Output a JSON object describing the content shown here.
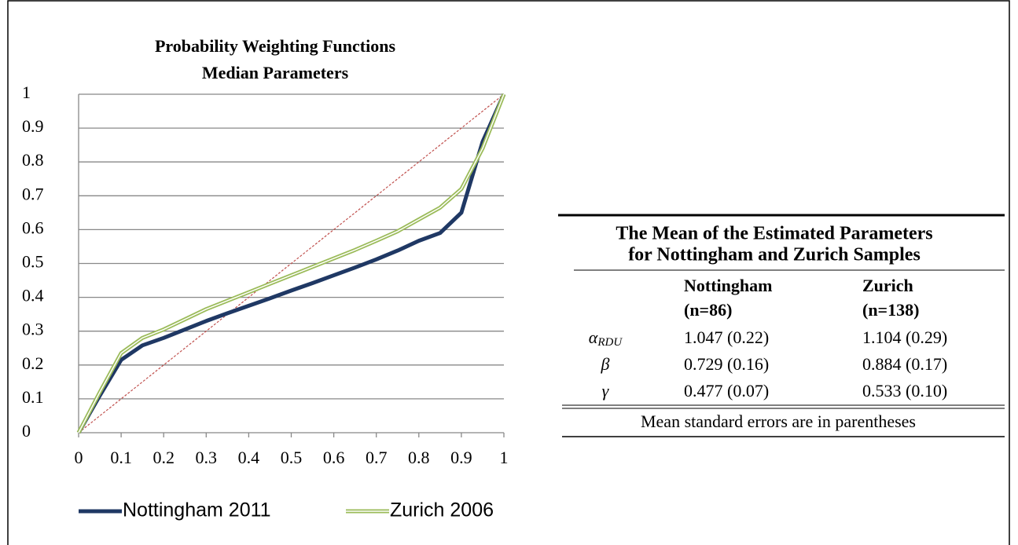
{
  "chart_data": {
    "type": "line",
    "title": [
      "Probability Weighting Functions",
      "Median Parameters"
    ],
    "x": [
      0,
      0.05,
      0.1,
      0.15,
      0.2,
      0.25,
      0.3,
      0.35,
      0.4,
      0.45,
      0.5,
      0.55,
      0.6,
      0.65,
      0.7,
      0.75,
      0.8,
      0.85,
      0.9,
      0.95,
      1
    ],
    "series": [
      {
        "color": "#c0504d",
        "style": "dashed",
        "values": [
          0,
          0.05,
          0.1,
          0.15,
          0.2,
          0.25,
          0.3,
          0.35,
          0.4,
          0.45,
          0.5,
          0.55,
          0.6,
          0.65,
          0.7,
          0.75,
          0.8,
          0.85,
          0.9,
          0.95,
          1
        ]
      },
      {
        "name": "Nottingham 2011",
        "color": "#1f3864",
        "style": "solid",
        "values": [
          0,
          0.11,
          0.215,
          0.258,
          0.28,
          0.305,
          0.33,
          0.353,
          0.375,
          0.397,
          0.42,
          0.442,
          0.465,
          0.488,
          0.512,
          0.538,
          0.567,
          0.59,
          0.65,
          0.86,
          1
        ]
      },
      {
        "name": "Zurich 2006",
        "color": "#9bbb59",
        "style": "double",
        "values": [
          0,
          0.12,
          0.235,
          0.28,
          0.305,
          0.335,
          0.365,
          0.39,
          0.415,
          0.44,
          0.465,
          0.49,
          0.515,
          0.54,
          0.567,
          0.595,
          0.63,
          0.665,
          0.72,
          0.84,
          1
        ]
      }
    ],
    "xlim": [
      0,
      1
    ],
    "xticks": [
      0,
      0.1,
      0.2,
      0.3,
      0.4,
      0.5,
      0.6,
      0.7,
      0.8,
      0.9,
      1
    ],
    "ylim": [
      0,
      1
    ],
    "yticks": [
      0,
      0.1,
      0.2,
      0.3,
      0.4,
      0.5,
      0.6,
      0.7,
      0.8,
      0.9,
      1
    ],
    "grid": true,
    "legend": "bottom"
  },
  "table": {
    "title": [
      "The Mean of the Estimated Parameters",
      "for Nottingham and Zurich Samples"
    ],
    "columns": [
      [
        "Nottingham",
        "(n=86)"
      ],
      [
        "Zurich",
        "(n=138)"
      ]
    ],
    "rows": [
      {
        "param": "α",
        "sub": "RDU",
        "cells": [
          "1.047 (0.22)",
          "1.104 (0.29)"
        ]
      },
      {
        "param": "β",
        "cells": [
          "0.729 (0.16)",
          "0.884 (0.17)"
        ]
      },
      {
        "param": "γ",
        "cells": [
          "0.477 (0.07)",
          "0.533 (0.10)"
        ]
      }
    ],
    "note": "Mean standard errors are in parentheses"
  }
}
